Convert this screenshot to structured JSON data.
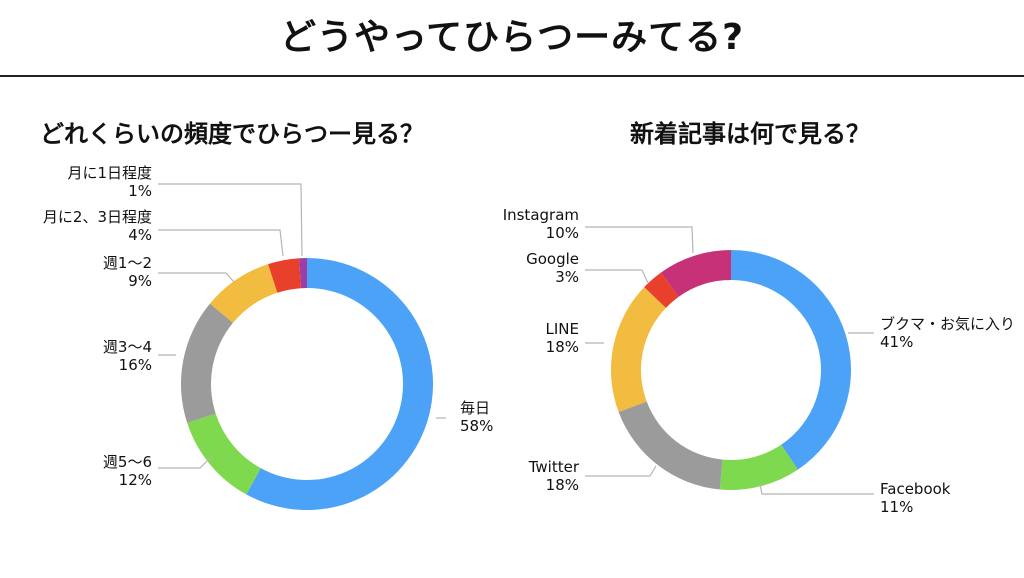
{
  "page": {
    "title": "どうやってひらつーみてる?"
  },
  "colors": {
    "blue": "#4ca2f6",
    "green": "#7fd94f",
    "gray": "#9b9b9b",
    "yellow": "#f1bc3f",
    "red": "#e8402b",
    "purple": "#9b3fa6",
    "magenta": "#c63177",
    "leader": "#b5b5b5"
  },
  "chart_data": [
    {
      "type": "pie",
      "title": "どれくらいの頻度でひらつー見る？",
      "categories": [
        "毎日",
        "週5〜6",
        "週3〜4",
        "週1〜2",
        "月に2、3日程度",
        "月に1日程度"
      ],
      "values": [
        58,
        12,
        16,
        9,
        4,
        1
      ],
      "value_labels": [
        "58%",
        "12%",
        "16%",
        "9%",
        "4%",
        "1%"
      ],
      "colors": [
        "#4ca2f6",
        "#7fd94f",
        "#9b9b9b",
        "#f1bc3f",
        "#e8402b",
        "#9b3fa6"
      ],
      "donut": true
    },
    {
      "type": "pie",
      "title": "新着記事は何で見る？",
      "categories": [
        "ブクマ・お気に入り",
        "Facebook",
        "Twitter",
        "LINE",
        "Google",
        "Instagram"
      ],
      "values": [
        41,
        11,
        18,
        18,
        3,
        10
      ],
      "value_labels": [
        "41%",
        "11%",
        "18%",
        "18%",
        "3%",
        "10%"
      ],
      "colors": [
        "#4ca2f6",
        "#7fd94f",
        "#9b9b9b",
        "#f1bc3f",
        "#e8402b",
        "#c63177"
      ],
      "donut": true
    }
  ]
}
